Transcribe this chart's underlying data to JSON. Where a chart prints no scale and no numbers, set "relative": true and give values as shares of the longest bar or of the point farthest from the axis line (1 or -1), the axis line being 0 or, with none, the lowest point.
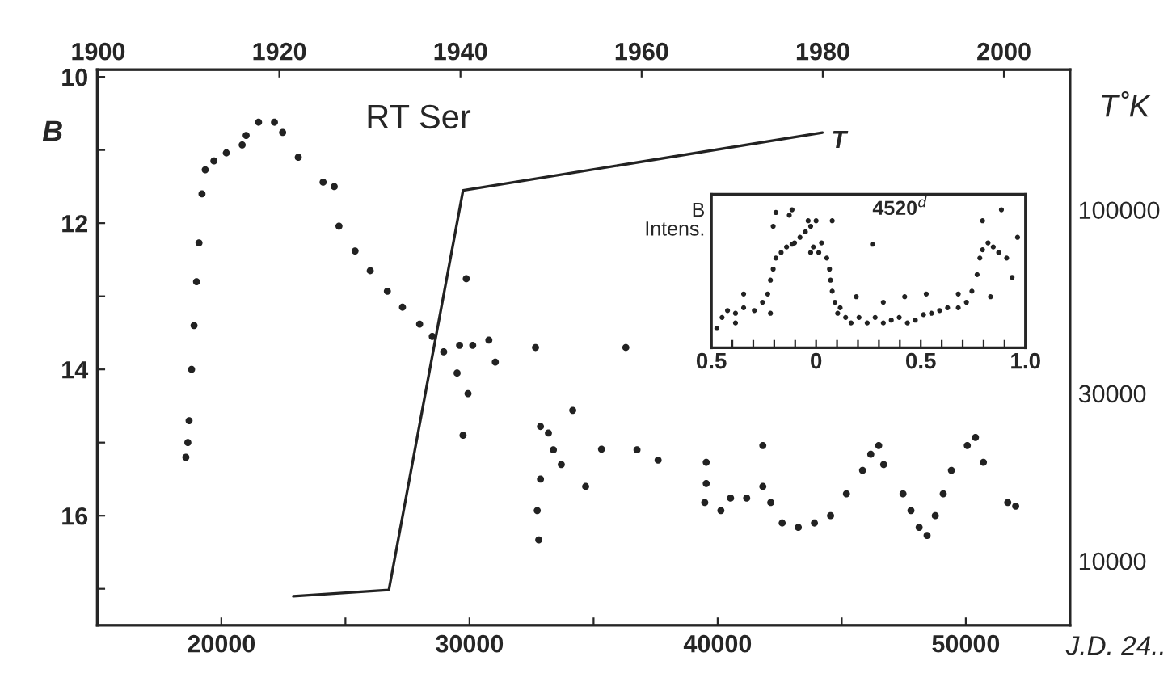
{
  "chart_data": [
    {
      "type": "scatter",
      "ylabel": "B",
      "y2label": "T˚K",
      "xlabel": "J.D. 24..",
      "annotations": [
        "RT Ser"
      ],
      "xlim": [
        15000,
        54200
      ],
      "xticks": [
        {
          "value": 20000,
          "label": "20000"
        },
        {
          "value": 25000,
          "label": null
        },
        {
          "value": 30000,
          "label": "30000"
        },
        {
          "value": 35000,
          "label": null
        },
        {
          "value": 40000,
          "label": "40000"
        },
        {
          "value": 45000,
          "label": null
        },
        {
          "value": 50000,
          "label": "50000"
        }
      ],
      "ylim": [
        17.5,
        9.9
      ],
      "yticks": [
        10,
        {
          "value": 11,
          "label": null
        },
        12,
        {
          "value": 13,
          "label": null
        },
        14,
        {
          "value": 15,
          "label": null
        },
        16,
        {
          "value": 17,
          "label": null
        }
      ],
      "x2lim": [
        1899.9,
        2007.3
      ],
      "x2ticks": [
        1900,
        1920,
        1940,
        1960,
        1980,
        2000
      ],
      "y2lim": [
        6550,
        251000
      ],
      "y2ticks": [
        10000,
        30000,
        100000
      ],
      "log": "y2",
      "grid": false,
      "legend": false,
      "marker": "circle",
      "series": [
        {
          "type": "scatter",
          "color": "#222222",
          "x": [
            18570,
            18650,
            18700,
            18800,
            18900,
            19000,
            19100,
            19220,
            19350,
            19700,
            20200,
            20840,
            21000,
            21500,
            22140,
            22470,
            23100,
            24100,
            24550,
            24740,
            25390,
            26000,
            26690,
            27300,
            27990,
            28500,
            28960,
            29500,
            29940,
            29870,
            32660,
            31040,
            29600,
            30130,
            30780,
            29740,
            32860,
            32860,
            34160,
            33700,
            34680,
            32730,
            32790,
            33180,
            33380,
            36300,
            35320,
            37600,
            36750,
            39540,
            39540,
            39480,
            40130,
            40520,
            41170,
            41820,
            41820,
            42140,
            42600,
            43250,
            43900,
            44550,
            45190,
            45840,
            46170,
            46490,
            46690,
            47470,
            47790,
            48120,
            48440,
            48770,
            49090,
            49420,
            50060,
            50390,
            50710,
            51690,
            52010
          ],
          "values": [
            15.2,
            15.0,
            14.7,
            14.0,
            13.4,
            12.8,
            12.27,
            11.6,
            11.27,
            11.15,
            11.04,
            10.93,
            10.8,
            10.62,
            10.62,
            10.76,
            11.1,
            11.44,
            11.5,
            12.04,
            12.38,
            12.65,
            12.93,
            13.15,
            13.38,
            13.55,
            13.76,
            14.05,
            14.33,
            12.76,
            13.7,
            13.9,
            13.67,
            13.67,
            13.6,
            14.9,
            14.78,
            15.5,
            14.56,
            15.3,
            15.6,
            15.93,
            16.33,
            14.87,
            15.1,
            13.7,
            15.09,
            15.24,
            15.1,
            15.27,
            15.56,
            15.82,
            15.93,
            15.76,
            15.76,
            15.04,
            15.6,
            15.82,
            16.1,
            16.16,
            16.1,
            16.0,
            15.7,
            15.38,
            15.16,
            15.04,
            15.3,
            15.7,
            15.93,
            16.16,
            16.27,
            16.0,
            15.7,
            15.38,
            15.04,
            14.93,
            15.27,
            15.82,
            15.87
          ]
        },
        {
          "type": "line",
          "name": "T",
          "axis": "y2",
          "color": "#222222",
          "marker": "none",
          "x": [
            22900,
            26750,
            29740,
            44220
          ],
          "values": [
            7930,
            8260,
            113600,
            166000
          ]
        }
      ]
    },
    {
      "type": "scatter",
      "ylabel": "B\nIntens.",
      "annotations": [
        "4520$^{d}$"
      ],
      "relative": true,
      "marker": "circle",
      "grid": false,
      "legend": false,
      "color": "#222222",
      "xlim": [
        -0.5,
        1.0
      ],
      "xticks": [
        {
          "value": -0.5,
          "label": "0.5"
        },
        {
          "value": -0.4,
          "label": null
        },
        {
          "value": -0.3,
          "label": null
        },
        {
          "value": -0.2,
          "label": null
        },
        {
          "value": -0.1,
          "label": null
        },
        0,
        {
          "value": 0.1,
          "label": null
        },
        {
          "value": 0.2,
          "label": null
        },
        {
          "value": 0.3,
          "label": null
        },
        {
          "value": 0.4,
          "label": null
        },
        0.5,
        {
          "value": 0.6,
          "label": null
        },
        {
          "value": 0.7,
          "label": null
        },
        {
          "value": 0.8,
          "label": null
        },
        {
          "value": 0.9,
          "label": null
        },
        {
          "value": 1.0,
          "label": "1.0"
        }
      ],
      "x": [
        -0.474,
        -0.449,
        -0.423,
        -0.385,
        -0.346,
        -0.295,
        -0.256,
        -0.231,
        -0.218,
        -0.205,
        -0.192,
        -0.167,
        -0.141,
        -0.115,
        -0.205,
        -0.192,
        -0.128,
        -0.103,
        -0.077,
        -0.051,
        -0.026,
        0.0,
        -0.013,
        0.013,
        0.026,
        0.051,
        0.064,
        0.069,
        0.077,
        0.09,
        0.103,
        0.115,
        0.141,
        0.167,
        0.205,
        0.244,
        0.282,
        0.321,
        0.359,
        0.397,
        0.436,
        0.474,
        0.513,
        0.551,
        0.59,
        0.628,
        0.679,
        0.718,
        0.744,
        0.769,
        0.782,
        0.795,
        0.821,
        0.846,
        0.872,
        0.91,
        0.936,
        0.962,
        0.795,
        0.885,
        -0.115,
        -0.038,
        0.269,
        0.077,
        -0.026,
        0.423,
        0.321,
        0.192,
        0.526,
        0.679,
        0.833,
        -0.218,
        -0.385,
        -0.346
      ],
      "values": [
        0.14,
        0.22,
        0.27,
        0.25,
        0.29,
        0.27,
        0.33,
        0.39,
        0.49,
        0.57,
        0.65,
        0.69,
        0.73,
        0.75,
        0.88,
        0.98,
        0.96,
        0.76,
        0.8,
        0.84,
        0.88,
        0.92,
        0.73,
        0.69,
        0.76,
        0.65,
        0.57,
        0.49,
        0.41,
        0.33,
        0.25,
        0.29,
        0.22,
        0.18,
        0.22,
        0.18,
        0.22,
        0.18,
        0.2,
        0.22,
        0.18,
        0.2,
        0.24,
        0.25,
        0.27,
        0.29,
        0.29,
        0.33,
        0.41,
        0.53,
        0.65,
        0.71,
        0.76,
        0.73,
        0.69,
        0.65,
        0.51,
        0.8,
        0.92,
        1.0,
        1.0,
        0.92,
        0.75,
        0.92,
        0.69,
        0.37,
        0.33,
        0.37,
        0.39,
        0.39,
        0.37,
        0.25,
        0.18,
        0.39
      ]
    }
  ]
}
